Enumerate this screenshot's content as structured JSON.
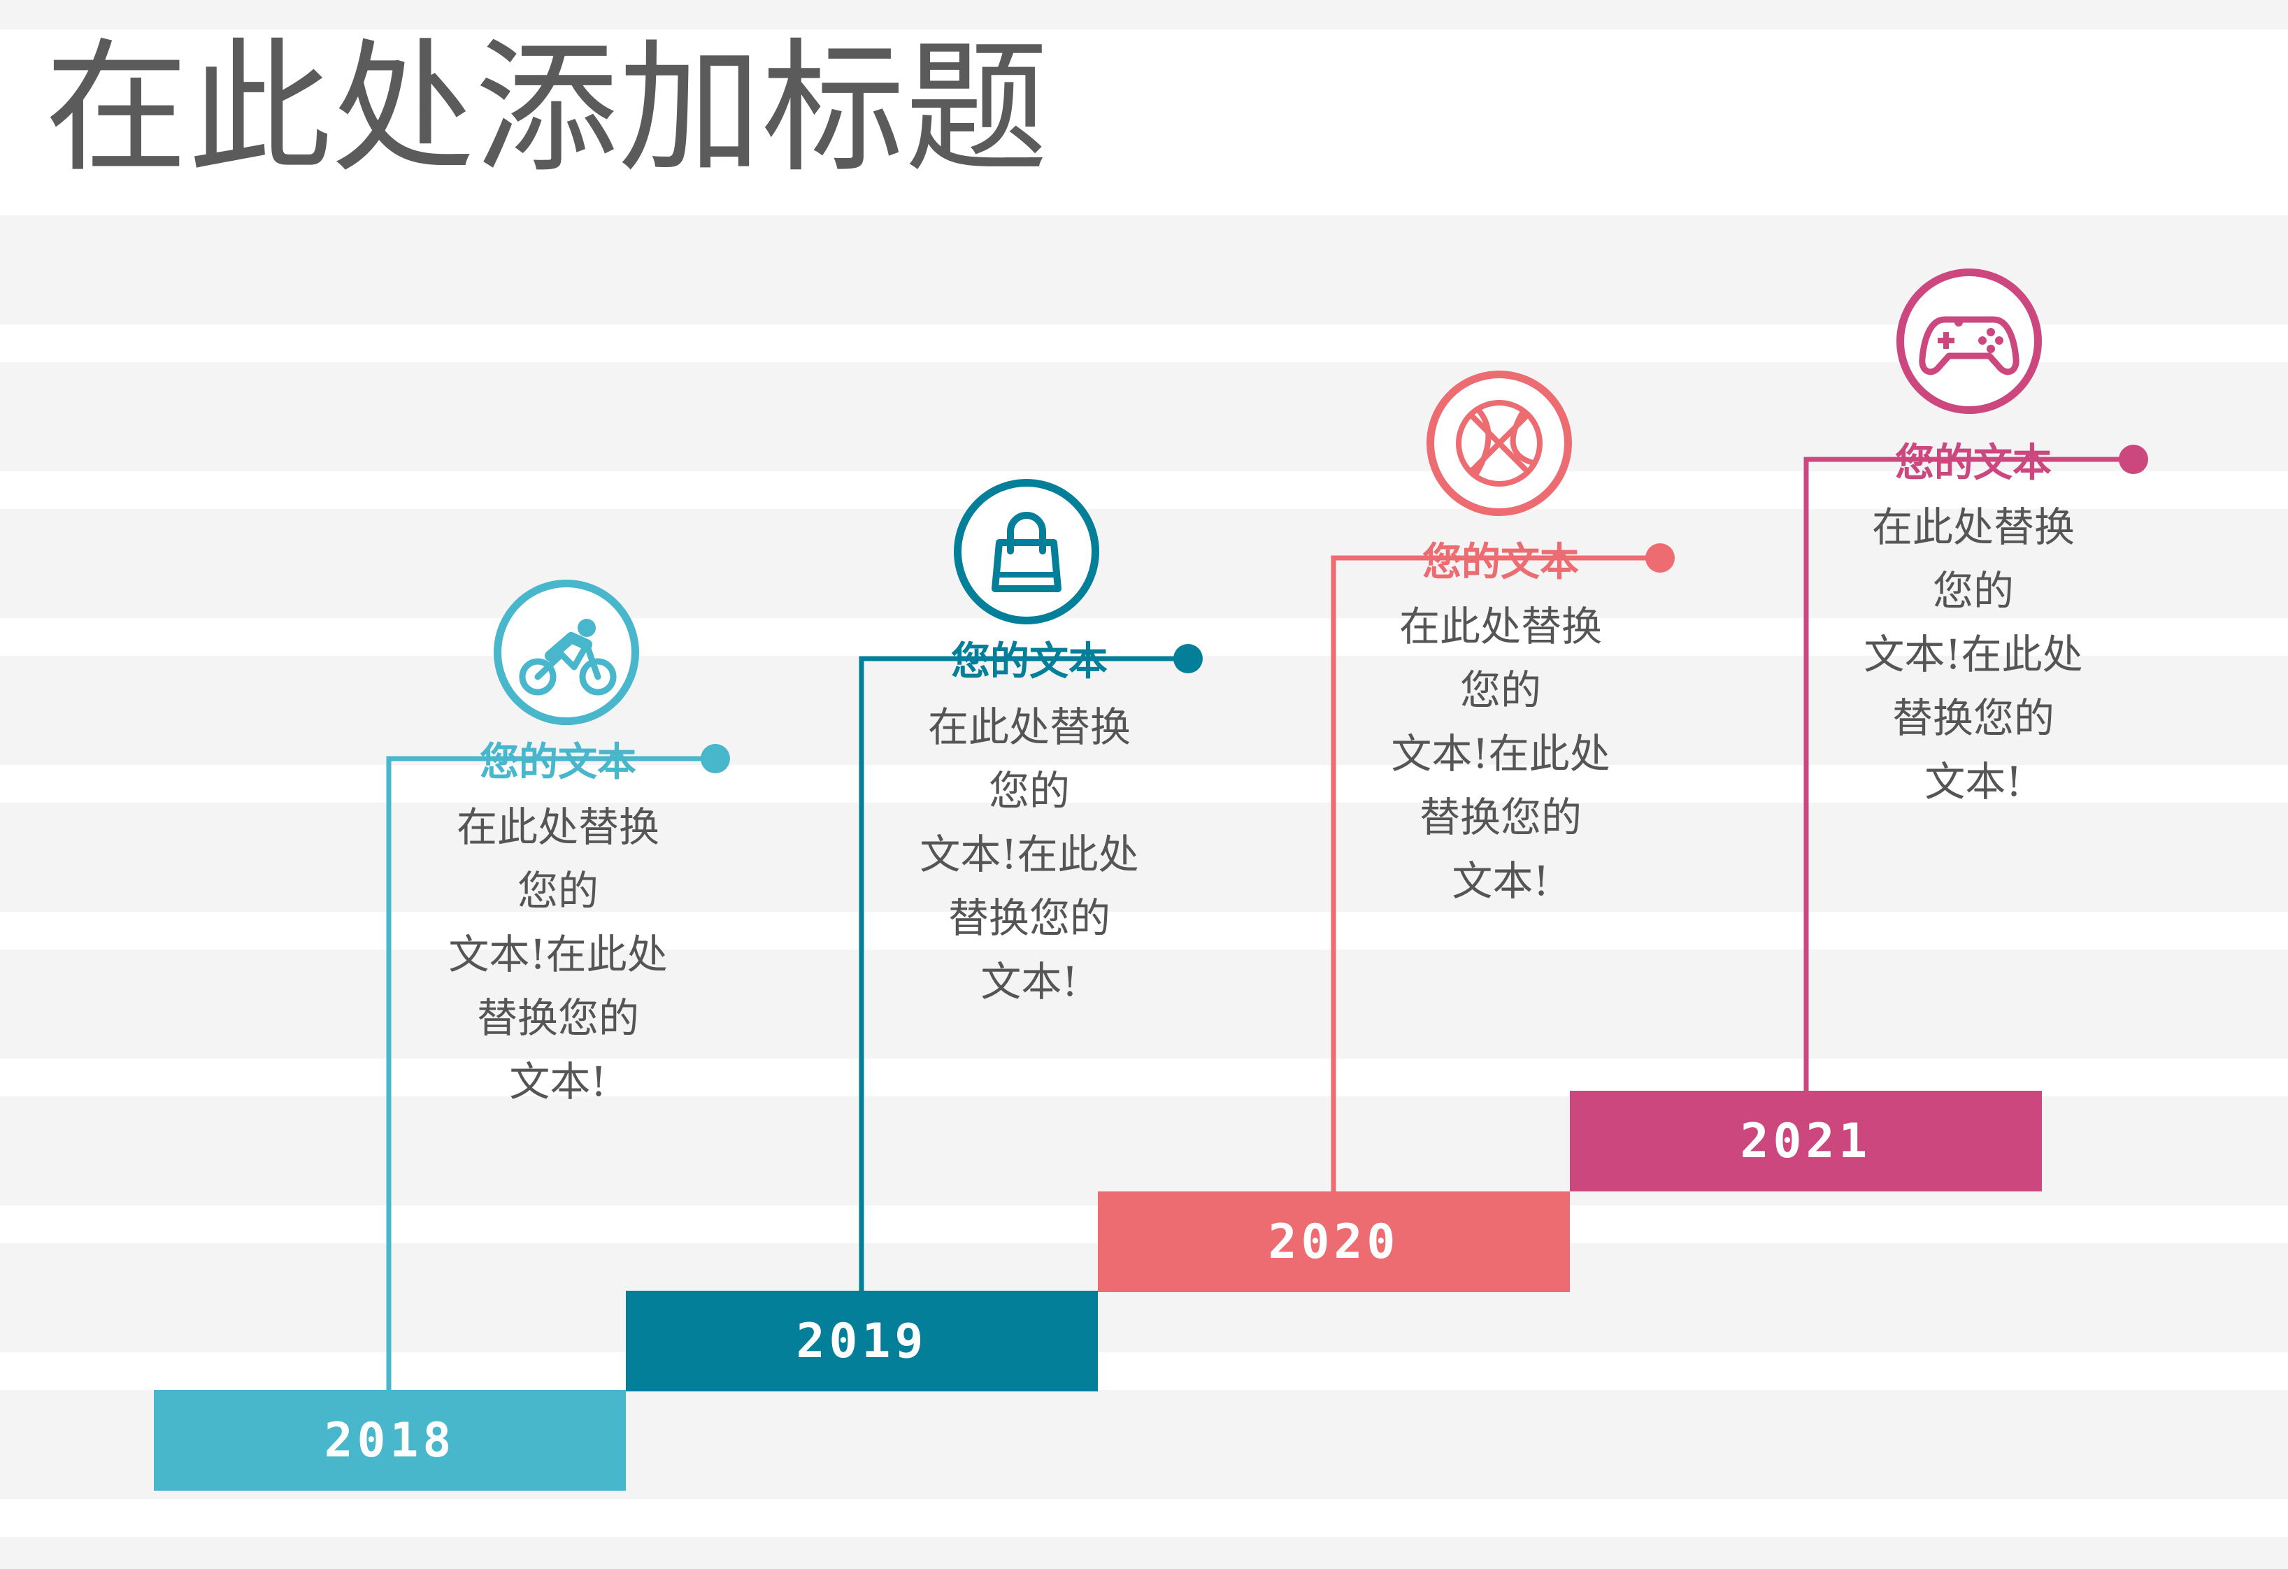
{
  "title": "在此处添加标题",
  "colors": {
    "step_2018": "#48b6cb",
    "step_2019": "#047f99",
    "step_2020": "#ed6c71",
    "step_2021": "#cd477f",
    "text": "#555555",
    "stripe": "#f4f4f4"
  },
  "steps": [
    {
      "year": "2018",
      "icon": "bicycle-icon",
      "heading": "您的文本",
      "body_lines": [
        "在此处替换",
        "您的",
        "文本!在此处",
        "替换您的",
        "文本!"
      ]
    },
    {
      "year": "2019",
      "icon": "shopping-bag-icon",
      "heading": "您的文本",
      "body_lines": [
        "在此处替换",
        "您的",
        "文本!在此处",
        "替换您的",
        "文本!"
      ]
    },
    {
      "year": "2020",
      "icon": "basketball-icon",
      "heading": "您的文本",
      "body_lines": [
        "在此处替换",
        "您的",
        "文本!在此处",
        "替换您的",
        "文本!"
      ]
    },
    {
      "year": "2021",
      "icon": "gamepad-icon",
      "heading": "您的文本",
      "body_lines": [
        "在此处替换",
        "您的",
        "文本!在此处",
        "替换您的",
        "文本!"
      ]
    }
  ]
}
